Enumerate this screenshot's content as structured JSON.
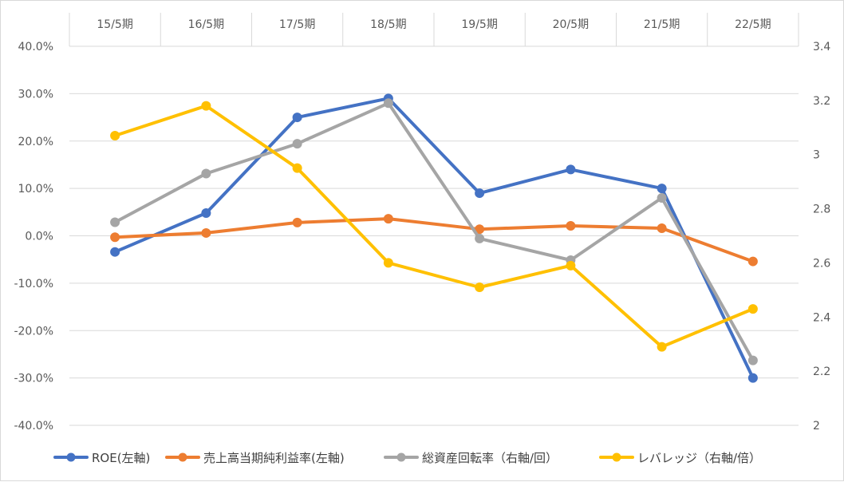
{
  "chart_data": {
    "type": "line",
    "categories": [
      "15/5期",
      "16/5期",
      "17/5期",
      "18/5期",
      "19/5期",
      "20/5期",
      "21/5期",
      "22/5期"
    ],
    "x_axis_position": "top",
    "y_left": {
      "ticks": [
        "40.0%",
        "30.0%",
        "20.0%",
        "10.0%",
        "0.0%",
        "-10.0%",
        "-20.0%",
        "-30.0%",
        "-40.0%"
      ],
      "range": [
        -40,
        40
      ],
      "unit": "percent"
    },
    "y_right": {
      "ticks": [
        "3.4",
        "3.2",
        "3",
        "2.8",
        "2.6",
        "2.4",
        "2.2",
        "2"
      ],
      "range": [
        2,
        3.4
      ]
    },
    "grid": true,
    "legend_position": "bottom",
    "series": [
      {
        "name": "ROE(左軸)",
        "axis": "left",
        "color": "#4472C4",
        "values": [
          -3.4,
          4.8,
          25.0,
          29.0,
          9.0,
          14.0,
          10.0,
          -30.0
        ]
      },
      {
        "name": "売上高当期純利益率(左軸)",
        "axis": "left",
        "color": "#ED7D31",
        "values": [
          -0.3,
          0.6,
          2.8,
          3.6,
          1.4,
          2.1,
          1.6,
          -5.4
        ]
      },
      {
        "name": "総資産回転率（右軸/回）",
        "axis": "right",
        "color": "#A5A5A5",
        "values": [
          2.75,
          2.93,
          3.04,
          3.19,
          2.69,
          2.61,
          2.84,
          2.24
        ]
      },
      {
        "name": "レバレッジ（右軸/倍）",
        "axis": "right",
        "color": "#FFC000",
        "values": [
          3.07,
          3.18,
          2.95,
          2.6,
          2.51,
          2.59,
          2.29,
          2.43
        ]
      }
    ]
  }
}
